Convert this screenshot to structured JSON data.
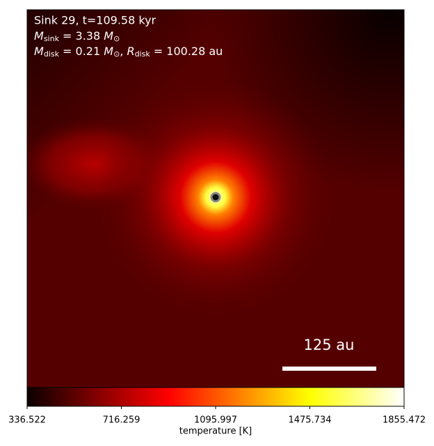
{
  "chart_data": {
    "type": "image",
    "annotation": {
      "line1": "Sink 29, t=109.58 kyr",
      "line2": [
        "M",
        "sink",
        " = 3.38 ",
        "M",
        "⊙"
      ],
      "line3": [
        "M",
        "disk",
        " = 0.21 ",
        "M",
        "⊙",
        ", ",
        "R",
        "disk",
        " = 100.28 au"
      ]
    },
    "scale_bar_label": "125 au",
    "colorbar": {
      "label": "temperature [K]",
      "colormap": "hot",
      "lim": [
        336.522,
        1855.472
      ],
      "ticks": [
        336.522,
        716.259,
        1095.997,
        1475.734,
        1855.472
      ]
    }
  }
}
